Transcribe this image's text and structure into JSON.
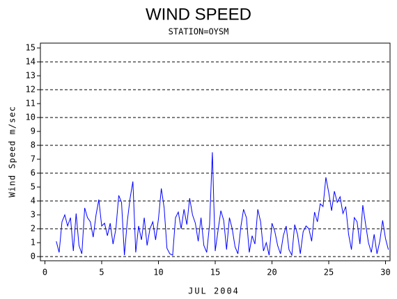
{
  "chart_data": {
    "type": "line",
    "title": "WIND SPEED",
    "subtitle": "STATION=OYSM",
    "x_label": "JUL 2004",
    "y_label": "Wind Speed m/sec",
    "x": [
      1.0,
      1.25,
      1.5,
      1.75,
      2.0,
      2.25,
      2.5,
      2.75,
      3.0,
      3.25,
      3.5,
      3.75,
      4.0,
      4.25,
      4.5,
      4.75,
      5.0,
      5.25,
      5.5,
      5.75,
      6.0,
      6.25,
      6.5,
      6.75,
      7.0,
      7.25,
      7.5,
      7.75,
      8.0,
      8.25,
      8.5,
      8.75,
      9.0,
      9.25,
      9.5,
      9.75,
      10.0,
      10.25,
      10.5,
      10.75,
      11.0,
      11.25,
      11.5,
      11.75,
      12.0,
      12.25,
      12.5,
      12.75,
      13.0,
      13.25,
      13.5,
      13.75,
      14.0,
      14.25,
      14.5,
      14.75,
      15.0,
      15.25,
      15.5,
      15.75,
      16.0,
      16.25,
      16.5,
      16.75,
      17.0,
      17.25,
      17.5,
      17.75,
      18.0,
      18.25,
      18.5,
      18.75,
      19.0,
      19.25,
      19.5,
      19.75,
      20.0,
      20.25,
      20.5,
      20.75,
      21.0,
      21.25,
      21.5,
      21.75,
      22.0,
      22.25,
      22.5,
      22.75,
      23.0,
      23.25,
      23.5,
      23.75,
      24.0,
      24.25,
      24.5,
      24.75,
      25.0,
      25.25,
      25.5,
      25.75,
      26.0,
      26.25,
      26.5,
      26.75,
      27.0,
      27.25,
      27.5,
      27.75,
      28.0,
      28.25,
      28.5,
      28.75,
      29.0,
      29.25,
      29.5,
      29.75,
      30.0,
      30.25
    ],
    "series": [
      {
        "color": "#0000ff",
        "values": [
          1.1,
          0.3,
          2.5,
          3.0,
          2.2,
          2.8,
          0.4,
          3.1,
          0.8,
          0.2,
          3.5,
          2.8,
          2.5,
          1.4,
          3.0,
          4.1,
          2.2,
          2.4,
          1.5,
          2.4,
          0.9,
          2.0,
          4.4,
          3.9,
          0.1,
          2.5,
          4.2,
          5.4,
          0.3,
          2.2,
          1.2,
          2.8,
          0.8,
          2.0,
          2.5,
          1.2,
          2.7,
          4.9,
          3.5,
          0.6,
          0.2,
          0.1,
          2.8,
          3.2,
          2.0,
          3.4,
          2.3,
          4.2,
          3.0,
          2.4,
          1.1,
          2.8,
          0.8,
          0.3,
          2.3,
          7.5,
          0.4,
          1.9,
          3.3,
          2.6,
          0.5,
          2.8,
          2.0,
          0.7,
          0.2,
          2.1,
          3.4,
          2.8,
          0.3,
          1.5,
          0.9,
          3.4,
          2.5,
          0.4,
          1.0,
          0.1,
          2.4,
          1.8,
          0.8,
          0.2,
          1.5,
          2.2,
          0.5,
          0.1,
          2.3,
          1.6,
          0.2,
          1.8,
          2.2,
          2.0,
          1.1,
          3.2,
          2.5,
          3.8,
          3.6,
          5.7,
          4.6,
          3.3,
          4.7,
          3.9,
          4.3,
          3.1,
          3.6,
          1.6,
          0.5,
          2.8,
          2.5,
          0.9,
          3.7,
          2.3,
          1.0,
          0.3,
          1.6,
          0.2,
          1.1,
          2.6,
          1.3,
          0.5
        ]
      }
    ],
    "xlim": [
      -0.4,
      30.4
    ],
    "xticks": [
      0,
      5,
      10,
      15,
      20,
      25,
      30
    ],
    "ylim": [
      -0.3,
      15.35
    ],
    "yticks": [
      0,
      1,
      2,
      3,
      4,
      5,
      6,
      7,
      8,
      9,
      10,
      11,
      12,
      13,
      14,
      15
    ],
    "grid_lines": [
      0,
      2,
      4,
      6,
      8,
      10,
      12,
      14
    ]
  }
}
